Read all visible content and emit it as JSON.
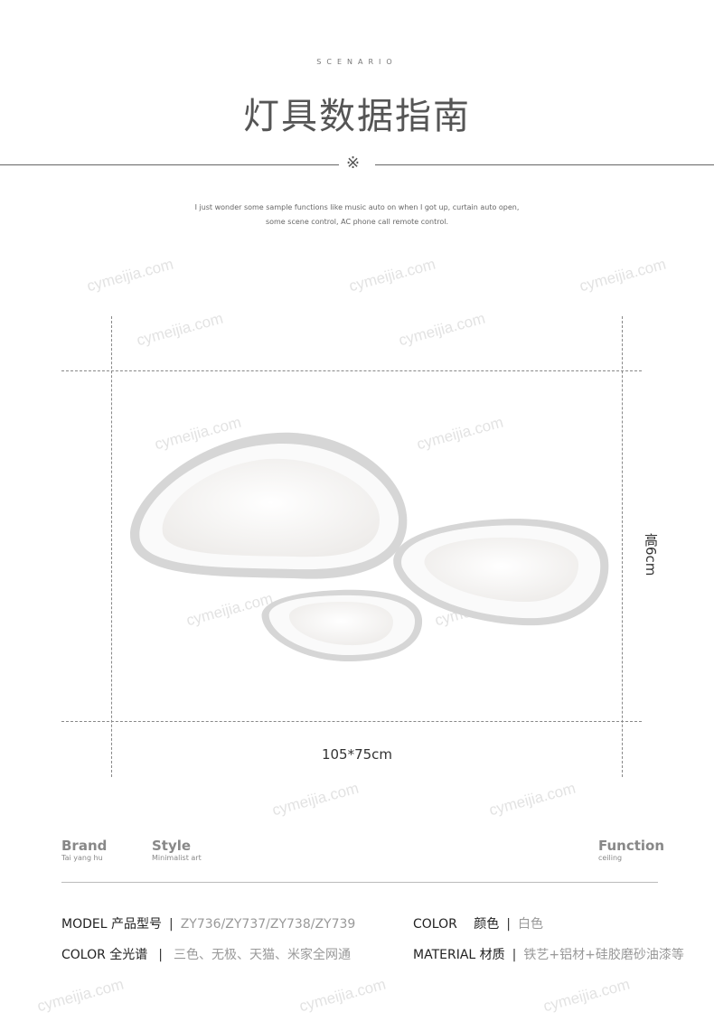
{
  "header": {
    "scenario": "SCENARIO",
    "title": "灯具数据指南",
    "ornament": "※",
    "description_line1": "I just wonder some sample functions like music auto on when I got up, curtain auto open,",
    "description_line2": "some scene control, AC phone call remote control."
  },
  "dimensions": {
    "size": "105*75cm",
    "height": "高6cm"
  },
  "specs": [
    {
      "heading": "Brand",
      "sub": "Tai yang hu"
    },
    {
      "heading": "Style",
      "sub": "Minimalist art"
    },
    {
      "heading": "Function",
      "sub": "ceiling"
    }
  ],
  "details": {
    "model_label": "MODEL 产品型号",
    "model_value": "ZY736/ZY737/ZY738/ZY739",
    "color_label": "COLOR 　颜色",
    "color_value": "白色",
    "spectrum_label": "COLOR 全光谱",
    "spectrum_value": "三色、无极、天猫、米家全网通",
    "material_label": "MATERIAL 材质",
    "material_value": "铁艺+铝材+硅胶磨砂油漆等",
    "separator": "|"
  },
  "watermark": "cymeijia.com",
  "colors": {
    "text": "#333333",
    "muted": "#999999",
    "line": "#666666"
  }
}
